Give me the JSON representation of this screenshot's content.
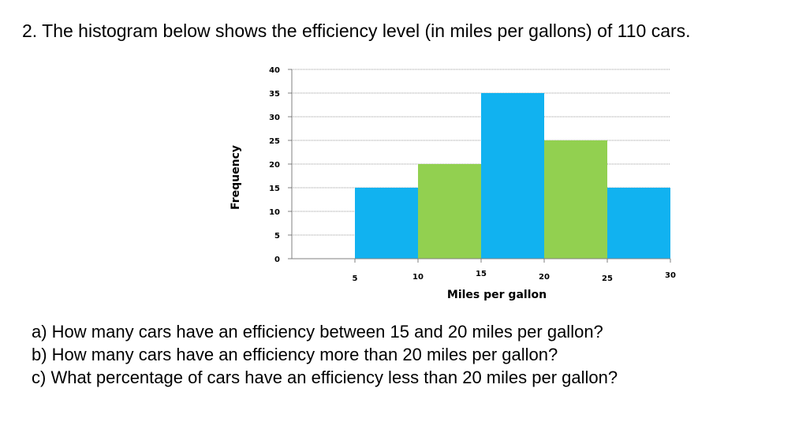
{
  "question": {
    "title": "2. The histogram below shows the efficiency level (in miles per gallons) of 110 cars."
  },
  "colors": {
    "blue": "#11B2F0",
    "green": "#92D050",
    "gridline": "#9a9a9a",
    "axis": "#808080"
  },
  "chart_data": {
    "type": "bar",
    "title": "",
    "xlabel": "Miles per gallon",
    "ylabel": "Frequency",
    "ylim": [
      0,
      40
    ],
    "xlim": [
      0,
      30
    ],
    "y_ticks": [
      "0",
      "5",
      "10",
      "15",
      "20",
      "25",
      "30",
      "35",
      "40"
    ],
    "x_ticks": [
      "5",
      "10",
      "15",
      "20",
      "25",
      "30"
    ],
    "grid": true,
    "bins": [
      {
        "x_start": 5,
        "x_end": 10,
        "value": 15,
        "color": "#11B2F0"
      },
      {
        "x_start": 10,
        "x_end": 15,
        "value": 20,
        "color": "#92D050"
      },
      {
        "x_start": 15,
        "x_end": 20,
        "value": 35,
        "color": "#11B2F0"
      },
      {
        "x_start": 20,
        "x_end": 25,
        "value": 25,
        "color": "#92D050"
      },
      {
        "x_start": 25,
        "x_end": 30,
        "value": 15,
        "color": "#11B2F0"
      }
    ]
  },
  "subquestions": [
    "a) How many cars have an efficiency between 15 and 20 miles per gallon?",
    "b) How many cars have an efficiency more than 20 miles per gallon?",
    "c) What percentage of cars have an efficiency less than 20 miles per gallon?"
  ]
}
